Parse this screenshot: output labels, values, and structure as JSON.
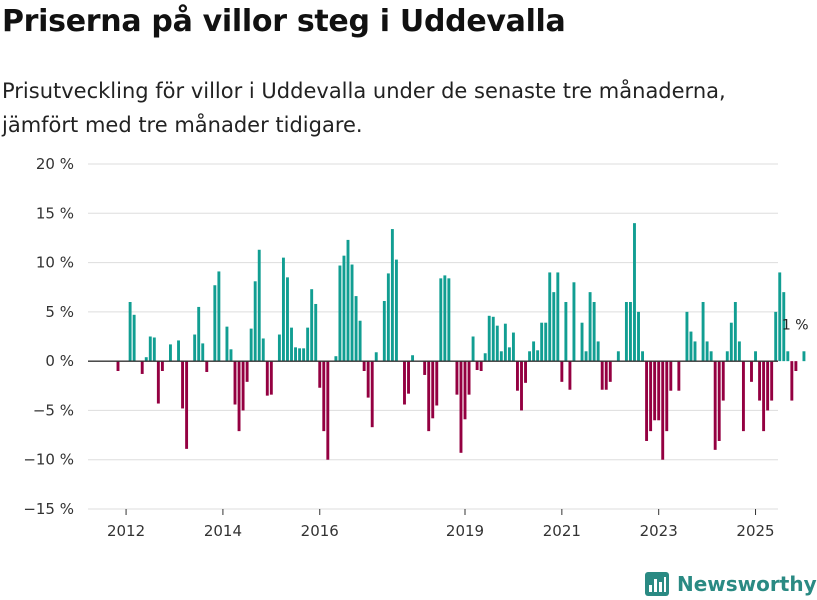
{
  "title": "Priserna på villor steg i Uddevalla",
  "subtitle": "Prisutveckling för villor i Uddevalla under de senaste tre månaderna, jämfört med tre månader tidigare.",
  "brand": "Newsworthy",
  "chart_data": {
    "type": "bar",
    "title": "Priserna på villor steg i Uddevalla",
    "xlabel": "",
    "ylabel": "",
    "ylim": [
      -15,
      20
    ],
    "yticks": [
      20,
      15,
      10,
      5,
      0,
      -5,
      -10,
      -15
    ],
    "ytick_labels": [
      "20 %",
      "15 %",
      "10 %",
      "5 %",
      "0 %",
      "−5 %",
      "−10 %",
      "−15 %"
    ],
    "xticks": [
      {
        "label": "2012",
        "index": 2
      },
      {
        "label": "2014",
        "index": 26
      },
      {
        "label": "2016",
        "index": 50
      },
      {
        "label": "2019",
        "index": 86
      },
      {
        "label": "2021",
        "index": 110
      },
      {
        "label": "2023",
        "index": 134
      },
      {
        "label": "2025",
        "index": 158
      }
    ],
    "colors": {
      "positive": "#119e92",
      "negative": "#940041",
      "zero_line": "#333333",
      "grid": "#dddddd"
    },
    "annotation": {
      "label": "1 %",
      "index": 168
    },
    "values": [
      -1,
      0,
      0,
      6,
      4.7,
      0,
      -1.3,
      0.4,
      2.5,
      2.4,
      -4.3,
      -1,
      0,
      1.7,
      0,
      2.1,
      -4.8,
      -8.9,
      0,
      2.7,
      5.5,
      1.8,
      -1.1,
      0,
      7.7,
      9.1,
      0,
      3.5,
      1.2,
      -4.4,
      -7.1,
      -5,
      -2.1,
      3.3,
      8.1,
      11.3,
      2.3,
      -3.5,
      -3.4,
      0,
      2.7,
      10.5,
      8.5,
      3.4,
      1.4,
      1.3,
      1.3,
      3.4,
      7.3,
      5.8,
      -2.7,
      -7.1,
      -10,
      0,
      0.5,
      9.7,
      10.7,
      12.3,
      9.8,
      6.6,
      4.1,
      -1,
      -3.7,
      -6.7,
      0.9,
      0,
      6.1,
      8.9,
      13.4,
      10.3,
      0,
      -4.4,
      -3.3,
      0.6,
      0,
      0,
      -1.4,
      -7.1,
      -5.8,
      -4.5,
      8.4,
      8.7,
      8.4,
      0,
      -3.4,
      -9.3,
      -5.9,
      -3.4,
      2.5,
      -0.9,
      -1,
      0.8,
      4.6,
      4.5,
      3.6,
      1,
      3.8,
      1.4,
      2.9,
      -3,
      -5,
      -2.2,
      1,
      2,
      1.1,
      3.9,
      3.9,
      9,
      7,
      9,
      -2.1,
      6,
      -2.9,
      8,
      0,
      3.9,
      1,
      7,
      6,
      2,
      -2.9,
      -2.9,
      -2.1,
      0,
      1,
      0,
      6,
      6,
      14,
      5,
      1,
      -8.1,
      -7.1,
      -6,
      -6,
      -10,
      -7.1,
      -3,
      0,
      -3,
      0,
      5,
      3,
      2,
      0,
      6,
      2,
      1,
      -9,
      -8.1,
      -4,
      1,
      3.9,
      6,
      2,
      -7.1,
      0,
      -2.1,
      1,
      -4,
      -7.1,
      -5,
      -4,
      5,
      9,
      7,
      1,
      -4,
      -1,
      0,
      1
    ]
  }
}
